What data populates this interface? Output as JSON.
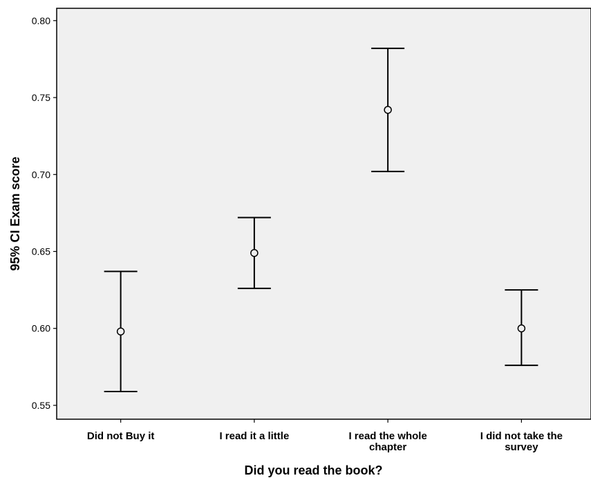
{
  "chart_data": {
    "type": "errorbar",
    "title": "",
    "xlabel": "Did you read the book?",
    "ylabel": "95% CI Exam score",
    "categories": [
      [
        "Did not Buy it"
      ],
      [
        "I read it a little"
      ],
      [
        "I read the whole",
        "chapter"
      ],
      [
        "I did not take the",
        "survey"
      ]
    ],
    "series": [
      {
        "mean": [
          0.598,
          0.649,
          0.742,
          0.6
        ],
        "lower": [
          0.559,
          0.626,
          0.702,
          0.576
        ],
        "upper": [
          0.637,
          0.672,
          0.782,
          0.625
        ]
      }
    ],
    "ylim": [
      0.541,
      0.808
    ],
    "yticks": [
      0.55,
      0.6,
      0.65,
      0.7,
      0.75,
      0.8
    ],
    "ytick_labels": [
      "0.55",
      "0.60",
      "0.65",
      "0.70",
      "0.75",
      "0.80"
    ],
    "grid": false,
    "legend": "none",
    "colors": {
      "plot_background": "#f0f0f0",
      "marks": "#000000"
    }
  }
}
